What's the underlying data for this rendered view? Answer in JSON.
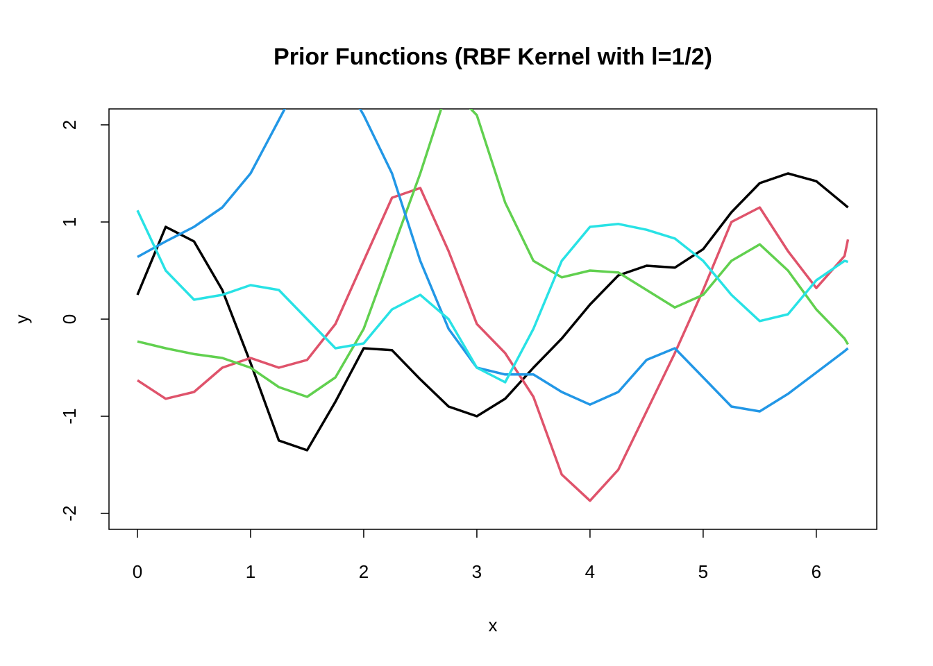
{
  "chart_data": {
    "type": "line",
    "title": "Prior Functions (RBF Kernel with l=1/2)",
    "x_label": "x",
    "y_label": "y",
    "x": [
      0,
      0.25,
      0.5,
      0.75,
      1,
      1.25,
      1.5,
      1.75,
      2,
      2.25,
      2.5,
      2.75,
      3,
      3.25,
      3.5,
      3.75,
      4,
      4.25,
      4.5,
      4.75,
      5,
      5.25,
      5.5,
      5.75,
      6,
      6.25,
      6.28
    ],
    "series": [
      {
        "color": "#000000",
        "values": [
          0.25,
          0.95,
          0.8,
          0.3,
          -0.45,
          -1.25,
          -1.35,
          -0.85,
          -0.3,
          -0.32,
          -0.62,
          -0.9,
          -1.0,
          -0.82,
          -0.5,
          -0.2,
          0.15,
          0.45,
          0.55,
          0.53,
          0.72,
          1.1,
          1.4,
          1.5,
          1.42,
          1.18,
          1.15
        ]
      },
      {
        "color": "#DF536B",
        "values": [
          -0.63,
          -0.82,
          -0.75,
          -0.5,
          -0.4,
          -0.5,
          -0.42,
          -0.05,
          0.6,
          1.25,
          1.35,
          0.7,
          -0.05,
          -0.35,
          -0.8,
          -1.6,
          -1.87,
          -1.55,
          -0.95,
          -0.35,
          0.3,
          1.0,
          1.15,
          0.7,
          0.32,
          0.65,
          0.82
        ]
      },
      {
        "color": "#61D04F",
        "values": [
          -0.23,
          -0.3,
          -0.36,
          -0.4,
          -0.5,
          -0.7,
          -0.8,
          -0.6,
          -0.1,
          0.7,
          1.5,
          2.4,
          2.1,
          1.2,
          0.6,
          0.43,
          0.5,
          0.48,
          0.3,
          0.12,
          0.25,
          0.6,
          0.77,
          0.5,
          0.1,
          -0.2,
          -0.26
        ]
      },
      {
        "color": "#2297E6",
        "values": [
          0.64,
          0.8,
          0.95,
          1.15,
          1.5,
          2.05,
          2.6,
          2.6,
          2.1,
          1.5,
          0.6,
          -0.1,
          -0.5,
          -0.57,
          -0.57,
          -0.75,
          -0.88,
          -0.75,
          -0.42,
          -0.3,
          -0.6,
          -0.9,
          -0.95,
          -0.77,
          -0.55,
          -0.33,
          -0.3
        ]
      },
      {
        "color": "#28E2E5",
        "values": [
          1.12,
          0.5,
          0.2,
          0.25,
          0.35,
          0.3,
          0.0,
          -0.3,
          -0.25,
          0.1,
          0.25,
          0.0,
          -0.5,
          -0.65,
          -0.1,
          0.6,
          0.95,
          0.98,
          0.92,
          0.83,
          0.6,
          0.25,
          -0.02,
          0.05,
          0.4,
          0.6,
          0.59
        ]
      }
    ],
    "xlim": [
      -0.2513,
      6.5345
    ],
    "ylim": [
      -2.164,
      2.164
    ],
    "xticks": [
      0,
      1,
      2,
      3,
      4,
      5,
      6
    ],
    "yticks": [
      -2,
      -1,
      0,
      1,
      2
    ]
  }
}
